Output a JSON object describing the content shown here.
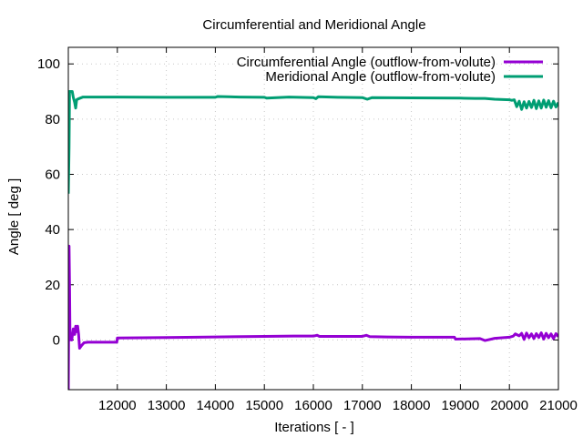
{
  "chart_data": {
    "type": "line",
    "title": "Circumferential and Meridional Angle",
    "xlabel": "Iterations [ - ]",
    "ylabel": "Angle [ deg ]",
    "xlim": [
      11000,
      21000
    ],
    "ylim": [
      -18,
      106
    ],
    "xticks": [
      12000,
      13000,
      14000,
      15000,
      16000,
      17000,
      18000,
      19000,
      20000,
      21000
    ],
    "yticks": [
      0,
      20,
      40,
      60,
      80,
      100
    ],
    "grid": true,
    "legend_position": "top-right",
    "series": [
      {
        "name": "Circumferential Angle (outflow-from-volute)",
        "color": "#9400d3",
        "points": [
          [
            11000,
            -18
          ],
          [
            11015,
            34
          ],
          [
            11025,
            20
          ],
          [
            11035,
            0
          ],
          [
            11050,
            1
          ],
          [
            11070,
            0
          ],
          [
            11100,
            4
          ],
          [
            11130,
            2
          ],
          [
            11150,
            5
          ],
          [
            11170,
            3
          ],
          [
            11190,
            5
          ],
          [
            11210,
            2
          ],
          [
            11230,
            -3
          ],
          [
            11270,
            -2
          ],
          [
            11320,
            -1
          ],
          [
            11400,
            -0.8
          ],
          [
            11600,
            -0.8
          ],
          [
            11990,
            -0.8
          ],
          [
            12000,
            0.7
          ],
          [
            12500,
            0.8
          ],
          [
            13000,
            0.9
          ],
          [
            14000,
            1.1
          ],
          [
            15000,
            1.3
          ],
          [
            15600,
            1.4
          ],
          [
            16000,
            1.4
          ],
          [
            16080,
            1.7
          ],
          [
            16120,
            1.3
          ],
          [
            16500,
            1.3
          ],
          [
            17000,
            1.3
          ],
          [
            17080,
            1.7
          ],
          [
            17150,
            1.2
          ],
          [
            17500,
            1.1
          ],
          [
            18000,
            1.0
          ],
          [
            18880,
            1.0
          ],
          [
            18900,
            0.3
          ],
          [
            19400,
            0.5
          ],
          [
            19500,
            -0.2
          ],
          [
            19700,
            0.6
          ],
          [
            20000,
            1.0
          ],
          [
            20080,
            1.4
          ],
          [
            20120,
            2.2
          ],
          [
            20200,
            1.5
          ],
          [
            20250,
            2.4
          ],
          [
            20300,
            0.2
          ],
          [
            20350,
            2.5
          ],
          [
            20400,
            0.8
          ],
          [
            20450,
            2.2
          ],
          [
            20500,
            0.5
          ],
          [
            20550,
            2.3
          ],
          [
            20600,
            0.9
          ],
          [
            20650,
            2.6
          ],
          [
            20700,
            0.3
          ],
          [
            20750,
            2.4
          ],
          [
            20800,
            0.8
          ],
          [
            20850,
            2.2
          ],
          [
            20900,
            0.5
          ],
          [
            20950,
            2.3
          ],
          [
            21000,
            1.2
          ]
        ]
      },
      {
        "name": "Meridional Angle (outflow-from-volute)",
        "color": "#009e73",
        "points": [
          [
            11000,
            53
          ],
          [
            11015,
            70
          ],
          [
            11025,
            90
          ],
          [
            11080,
            90
          ],
          [
            11100,
            88
          ],
          [
            11130,
            86
          ],
          [
            11150,
            84
          ],
          [
            11170,
            87
          ],
          [
            11200,
            87.3
          ],
          [
            11300,
            88
          ],
          [
            11500,
            88
          ],
          [
            12000,
            88
          ],
          [
            13000,
            87.9
          ],
          [
            14000,
            87.9
          ],
          [
            14050,
            88.2
          ],
          [
            14500,
            88.0
          ],
          [
            15000,
            87.9
          ],
          [
            15050,
            87.6
          ],
          [
            15500,
            88
          ],
          [
            16000,
            87.8
          ],
          [
            16050,
            87.4
          ],
          [
            16100,
            88.1
          ],
          [
            16500,
            87.9
          ],
          [
            17000,
            87.8
          ],
          [
            17100,
            87.2
          ],
          [
            17200,
            87.8
          ],
          [
            18000,
            87.7
          ],
          [
            19000,
            87.6
          ],
          [
            19300,
            87.5
          ],
          [
            19500,
            87.5
          ],
          [
            19700,
            87.2
          ],
          [
            20000,
            87.0
          ],
          [
            20050,
            86.8
          ],
          [
            20100,
            87.0
          ],
          [
            20150,
            84.5
          ],
          [
            20200,
            86.5
          ],
          [
            20250,
            83.5
          ],
          [
            20300,
            86.3
          ],
          [
            20350,
            84.0
          ],
          [
            20400,
            86.4
          ],
          [
            20450,
            84.2
          ],
          [
            20500,
            86.8
          ],
          [
            20550,
            83.8
          ],
          [
            20600,
            86.6
          ],
          [
            20650,
            84.0
          ],
          [
            20700,
            86.9
          ],
          [
            20750,
            84.3
          ],
          [
            20800,
            86.7
          ],
          [
            20850,
            84.1
          ],
          [
            20900,
            86.5
          ],
          [
            20950,
            84.4
          ],
          [
            21000,
            86.0
          ]
        ]
      }
    ]
  }
}
